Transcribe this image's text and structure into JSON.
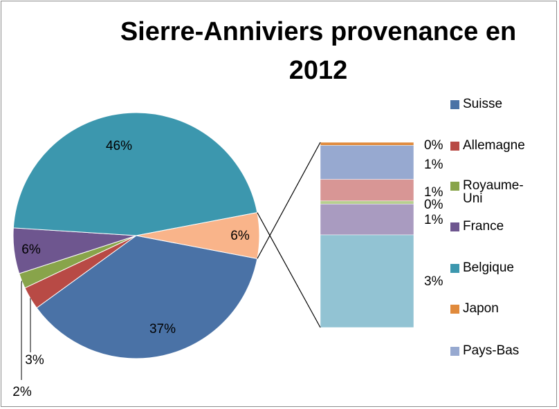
{
  "chart_data": {
    "type": "pie_of_bar",
    "title": "Sierre-Anniviers provenance en 2012",
    "categories": [
      "Suisse",
      "Allemagne",
      "Royaume-Uni",
      "France",
      "Belgique",
      null
    ],
    "values": [
      37,
      3,
      2,
      6,
      46,
      6
    ],
    "value_labels": [
      "37%",
      "3%",
      "2%",
      "6%",
      "46%",
      "6%"
    ],
    "colors": [
      "#4a72a6",
      "#b84a45",
      "#88a44a",
      "#6e568f",
      "#3c97ae",
      "#f9b48a"
    ],
    "bar": {
      "categories": [
        "Japon",
        "Pays-Bas",
        null,
        null,
        null,
        null
      ],
      "values": [
        0.1,
        1.1,
        0.7,
        0.1,
        1.0,
        3.0
      ],
      "value_labels": [
        "0%",
        "1%",
        "1%",
        "0%",
        "1%",
        "3%"
      ],
      "colors": [
        "#e08a3c",
        "#97a9d0",
        "#d89695",
        "#b7cf8e",
        "#a99bc0",
        "#92c3d3"
      ]
    },
    "legend": "right"
  }
}
